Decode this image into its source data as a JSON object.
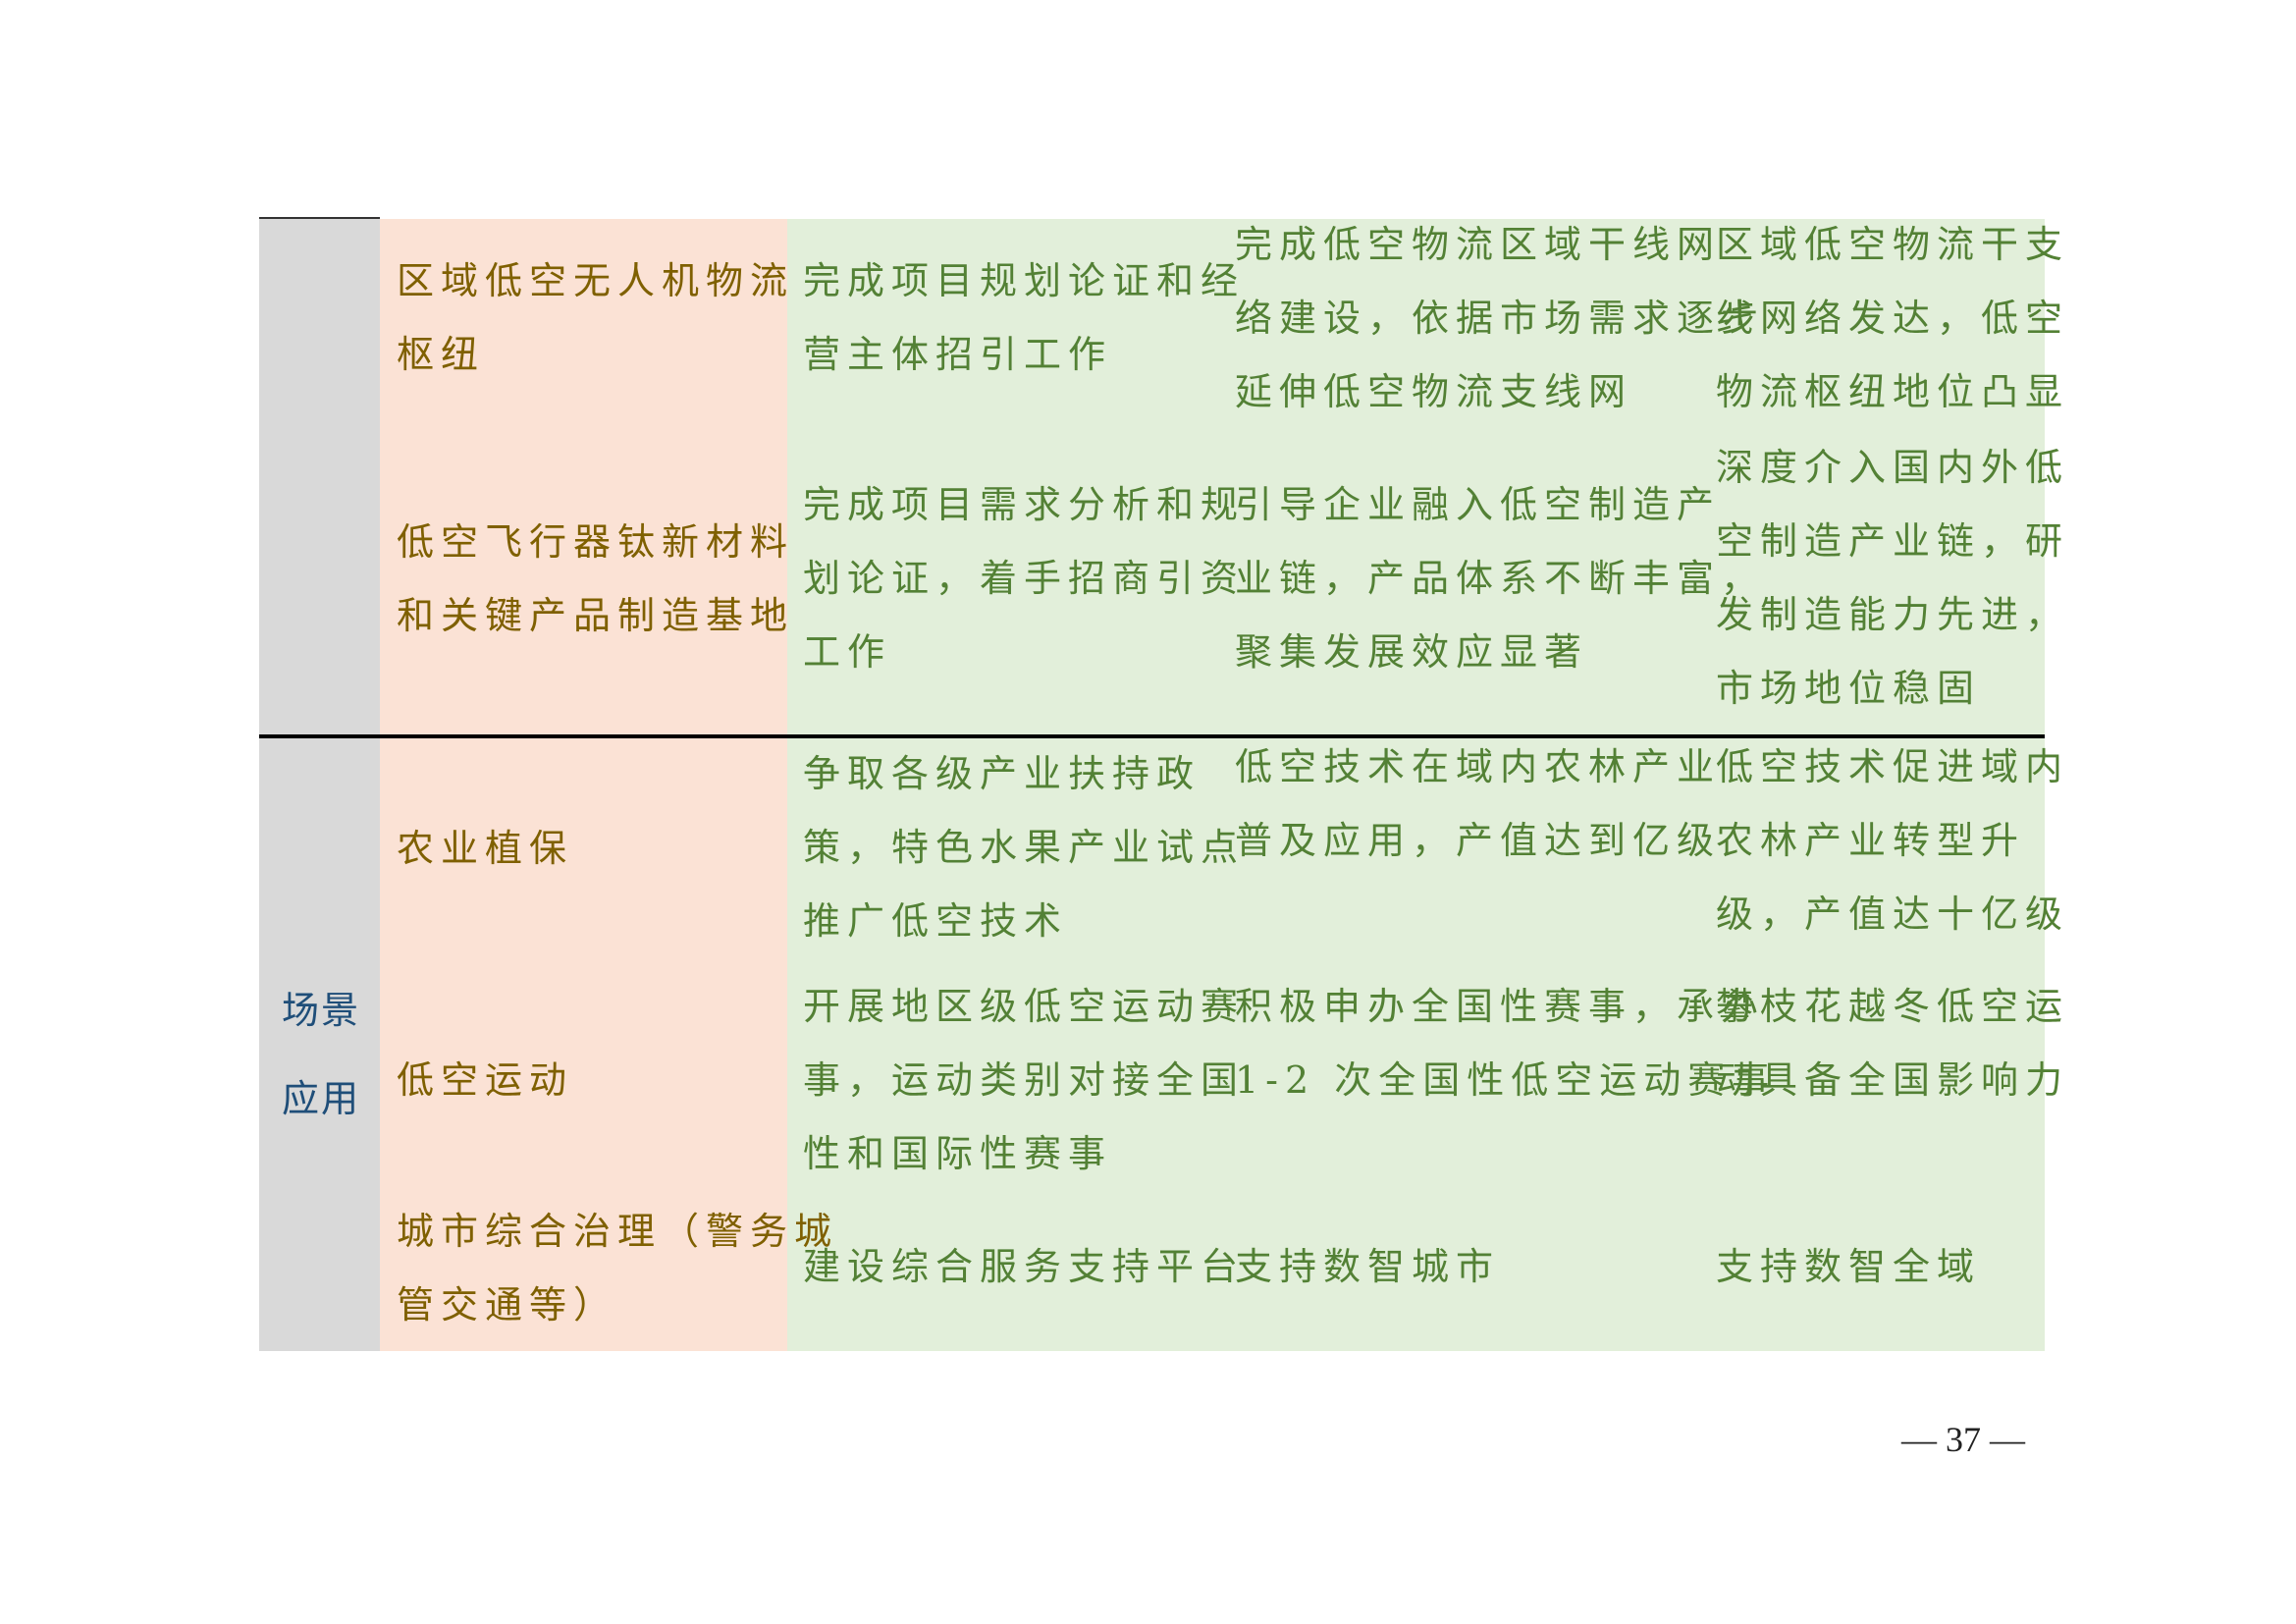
{
  "section_label": [
    "场景",
    "应用"
  ],
  "rows": [
    {
      "name": [
        "区域低空无人机物流",
        "枢纽"
      ],
      "stage1": [
        "完成项目规划论证和经",
        "营主体招引工作"
      ],
      "stage2": [
        "完成低空物流区域干线网",
        "络建设，依据市场需求逐步",
        "延伸低空物流支线网"
      ],
      "stage3": [
        "区域低空物流干支",
        "线网络发达，低空",
        "物流枢纽地位凸显"
      ]
    },
    {
      "name": [
        "低空飞行器钛新材料",
        "和关键产品制造基地"
      ],
      "stage1": [
        "完成项目需求分析和规",
        "划论证，着手招商引资",
        "工作"
      ],
      "stage2": [
        "引导企业融入低空制造产",
        "业链，产品体系不断丰富，",
        "聚集发展效应显著"
      ],
      "stage3": [
        "深度介入国内外低",
        "空制造产业链，研",
        "发制造能力先进，",
        "市场地位稳固"
      ]
    },
    {
      "name": [
        "农业植保"
      ],
      "stage1": [
        "争取各级产业扶持政",
        "策，特色水果产业试点",
        "推广低空技术"
      ],
      "stage2": [
        "低空技术在域内农林产业",
        "普及应用，产值达到亿级"
      ],
      "stage3": [
        "低空技术促进域内",
        "农林产业转型升",
        "级，产值达十亿级"
      ]
    },
    {
      "name": [
        "低空运动"
      ],
      "stage1": [
        "开展地区级低空运动赛",
        "事，运动类别对接全国",
        "性和国际性赛事"
      ],
      "stage2": [
        "积极申办全国性赛事，承办",
        "1-2 次全国性低空运动赛事"
      ],
      "stage3": [
        "攀枝花越冬低空运",
        "动具备全国影响力"
      ]
    },
    {
      "name": [
        "城市综合治理（警务城",
        "管交通等）"
      ],
      "stage1": [
        "建设综合服务支持平台"
      ],
      "stage2": [
        "支持数智城市"
      ],
      "stage3": [
        "支持数智全域"
      ]
    }
  ],
  "page_number": "— 37 —",
  "colors": {
    "label_column": "#d9d9d9",
    "name_column": "#fbe2d5",
    "stage_columns": "#e2efda",
    "name_text": "#7f6000",
    "stage_text": "#538135",
    "label_text": "#1f4e79"
  }
}
